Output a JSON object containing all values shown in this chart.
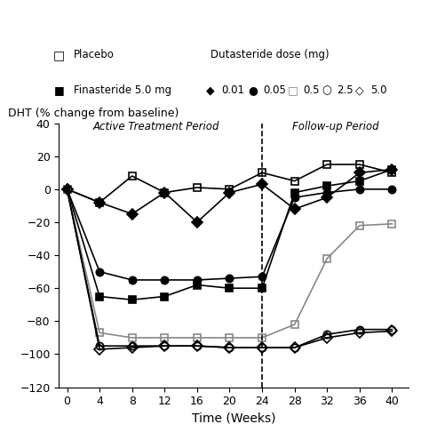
{
  "ylabel": "DHT (% change from baseline)",
  "xlabel": "Time (Weeks)",
  "ylim": [
    -120,
    40
  ],
  "yticks": [
    -120,
    -100,
    -80,
    -60,
    -40,
    -20,
    0,
    20,
    40
  ],
  "xticks": [
    0,
    4,
    8,
    12,
    16,
    20,
    24,
    28,
    32,
    36,
    40
  ],
  "dashed_x": 24,
  "active_label": "Active Treatment Period",
  "followup_label": "Follow-up Period",
  "series": {
    "placebo": {
      "x": [
        0,
        4,
        8,
        12,
        16,
        20,
        24,
        28,
        32,
        36,
        40
      ],
      "y": [
        0,
        -8,
        8,
        -2,
        1,
        0,
        10,
        5,
        15,
        15,
        10
      ],
      "color": "black",
      "marker": "s",
      "fillstyle": "none",
      "label": "Placebo",
      "markersize": 6,
      "linewidth": 1.2
    },
    "finasteride": {
      "x": [
        0,
        4,
        8,
        12,
        16,
        20,
        24,
        28,
        32,
        36,
        40
      ],
      "y": [
        0,
        -65,
        -67,
        -65,
        -58,
        -60,
        -60,
        -2,
        2,
        5,
        12
      ],
      "color": "black",
      "marker": "s",
      "fillstyle": "full",
      "label": "Finasteride 5.0 mg",
      "markersize": 6,
      "linewidth": 1.2
    },
    "duta_0_01": {
      "x": [
        0,
        4,
        8,
        12,
        16,
        20,
        24,
        28,
        32,
        36,
        40
      ],
      "y": [
        0,
        -8,
        -15,
        -2,
        -20,
        -2,
        3,
        -12,
        -5,
        10,
        12
      ],
      "color": "black",
      "marker": "D",
      "fillstyle": "full",
      "label": "0.01",
      "markersize": 6,
      "linewidth": 1.2
    },
    "duta_0_05": {
      "x": [
        0,
        4,
        8,
        12,
        16,
        20,
        24,
        28,
        32,
        36,
        40
      ],
      "y": [
        0,
        -50,
        -55,
        -55,
        -55,
        -54,
        -53,
        -5,
        -2,
        0,
        0
      ],
      "color": "black",
      "marker": "o",
      "fillstyle": "full",
      "label": "0.05",
      "markersize": 6,
      "linewidth": 1.2
    },
    "duta_0_5": {
      "x": [
        0,
        4,
        8,
        12,
        16,
        20,
        24,
        28,
        32,
        36,
        40
      ],
      "y": [
        0,
        -87,
        -90,
        -90,
        -90,
        -90,
        -90,
        -82,
        -42,
        -22,
        -21
      ],
      "color": "#888888",
      "marker": "s",
      "fillstyle": "none",
      "label": "0.5",
      "markersize": 6,
      "linewidth": 1.2
    },
    "duta_2_5": {
      "x": [
        0,
        4,
        8,
        12,
        16,
        20,
        24,
        28,
        32,
        36,
        40
      ],
      "y": [
        0,
        -95,
        -95,
        -95,
        -95,
        -96,
        -96,
        -96,
        -88,
        -85,
        -85
      ],
      "color": "black",
      "marker": "o",
      "fillstyle": "none",
      "label": "2.5",
      "markersize": 6,
      "linewidth": 1.2
    },
    "duta_5_0": {
      "x": [
        0,
        4,
        8,
        12,
        16,
        20,
        24,
        28,
        32,
        36,
        40
      ],
      "y": [
        0,
        -97,
        -96,
        -95,
        -95,
        -96,
        -96,
        -96,
        -90,
        -87,
        -86
      ],
      "color": "black",
      "marker": "D",
      "fillstyle": "none",
      "label": "5.0",
      "markersize": 6,
      "linewidth": 1.2
    }
  },
  "legend_row1_left": "Placebo",
  "legend_row1_right_title": "Dutasteride dose (mg)",
  "legend_row2_left": "Finasteride 5.0 mg",
  "legend_row2_right": [
    "0.01",
    "0.05",
    "0.5",
    "2.5",
    "5.0"
  ]
}
